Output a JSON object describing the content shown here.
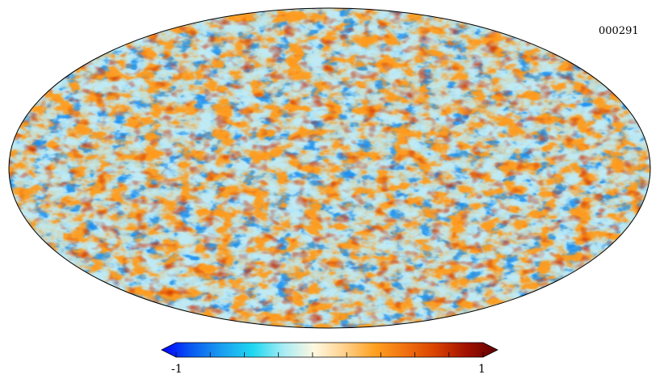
{
  "map_id": "000291",
  "colorbar": {
    "min_label": "-1",
    "max_label": "1",
    "colors": [
      "#0000ff",
      "#0a5cf0",
      "#1aa0f0",
      "#20d8f0",
      "#a8ecf4",
      "#fff8e0",
      "#ffd08a",
      "#ffa020",
      "#f07010",
      "#d84000",
      "#a01000",
      "#600000"
    ]
  },
  "map_style": {
    "projection": "mollweide",
    "outline_color": "#000000"
  }
}
